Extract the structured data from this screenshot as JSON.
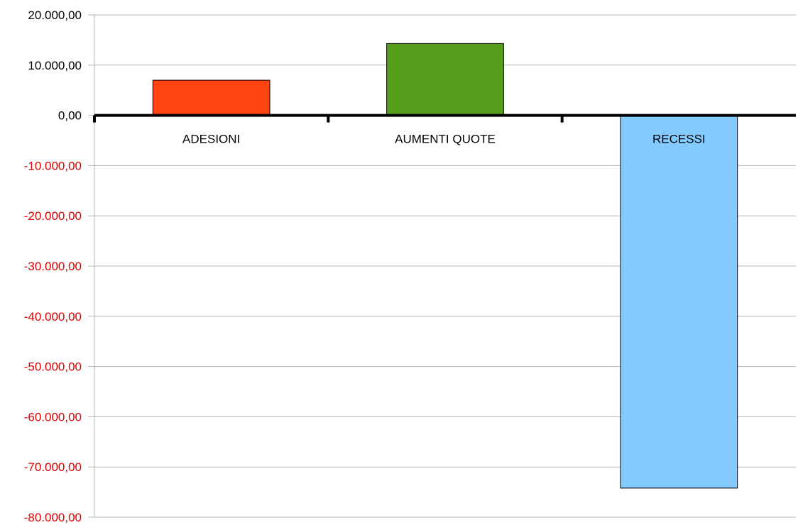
{
  "chart_data": {
    "type": "bar",
    "categories": [
      "ADESIONI",
      "AUMENTI QUOTE",
      "RECESSI"
    ],
    "values": [
      7000,
      14300,
      -74200
    ],
    "colors": [
      "#ff4411",
      "#579d1c",
      "#83caff"
    ],
    "ylim": [
      -80000,
      20000
    ],
    "yticks": [
      20000,
      10000,
      0,
      -10000,
      -20000,
      -30000,
      -40000,
      -50000,
      -60000,
      -70000,
      -80000
    ],
    "ytick_labels": [
      "20.000,00",
      "10.000,00",
      "0,00",
      "-10.000,00",
      "-20.000,00",
      "-30.000,00",
      "-40.000,00",
      "-50.000,00",
      "-60.000,00",
      "-70.000,00",
      "-80.000,00"
    ],
    "negative_label_color": "#e00000",
    "positive_label_color": "#000000",
    "grid": true,
    "title": "",
    "xlabel": "",
    "ylabel": ""
  }
}
